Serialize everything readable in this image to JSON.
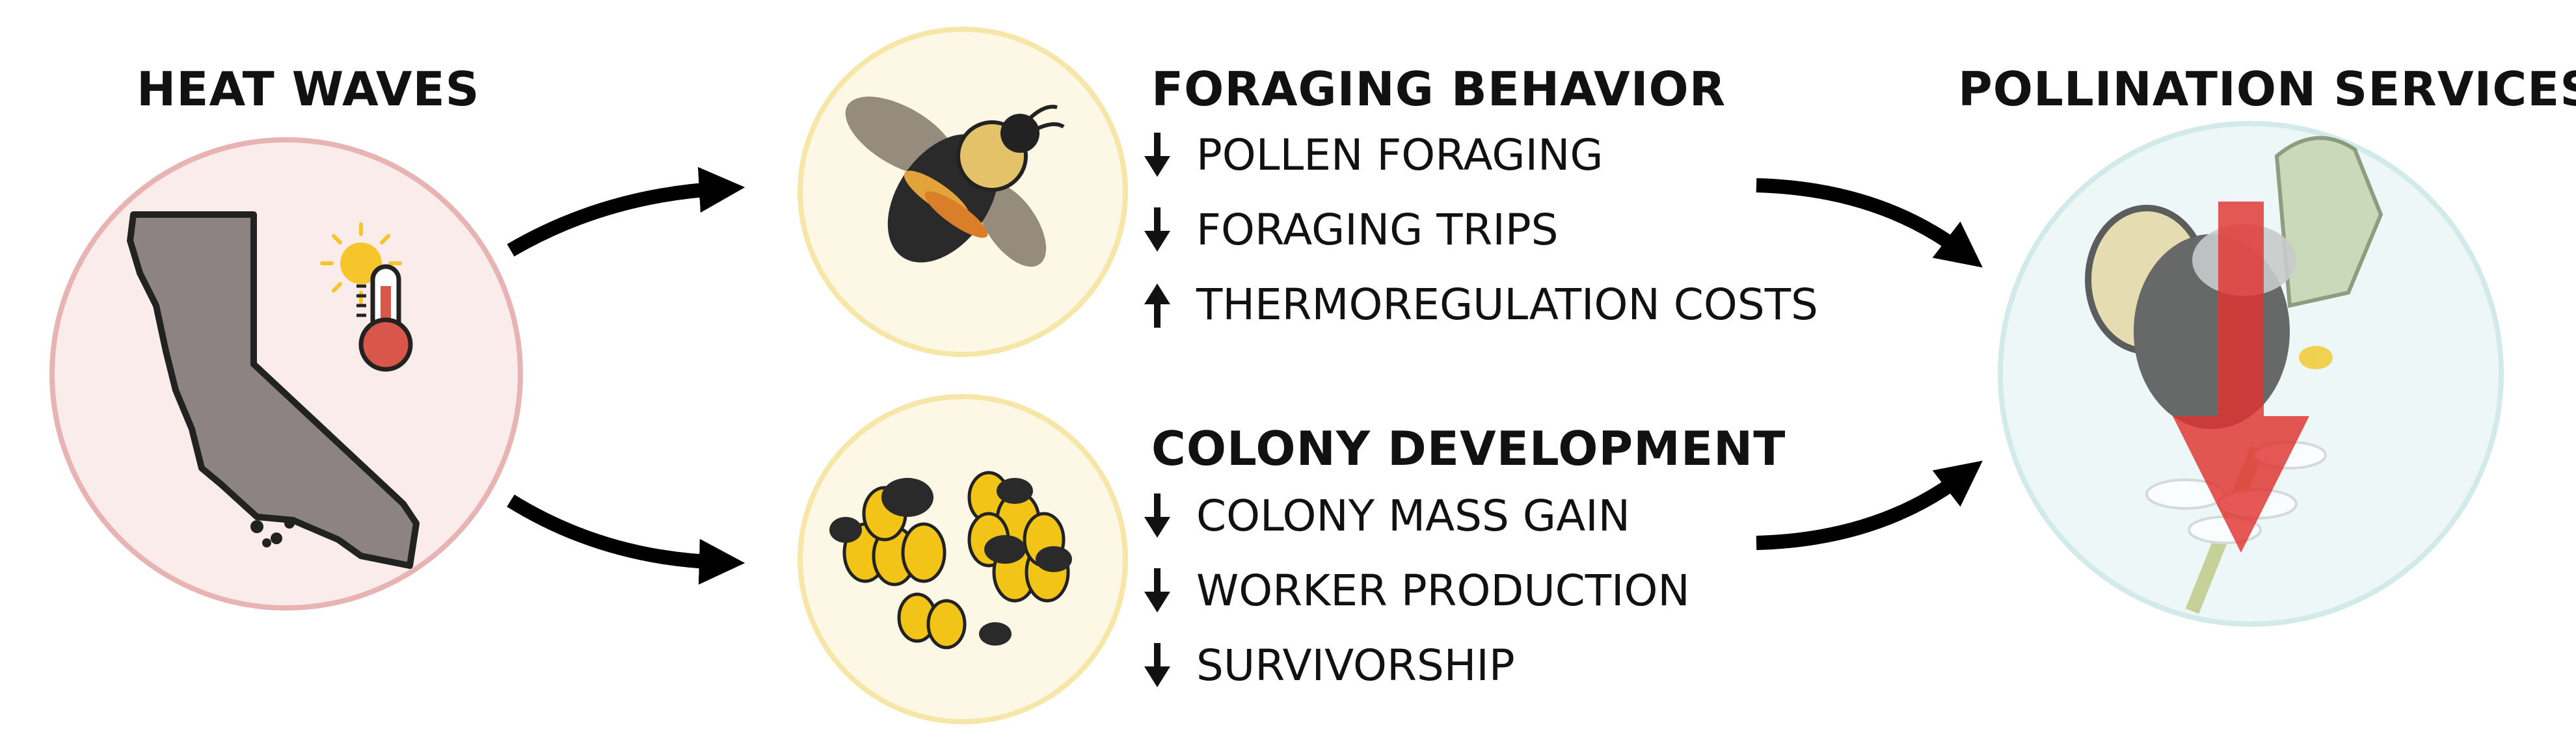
{
  "titles": {
    "heat_waves": "HEAT WAVES",
    "foraging": "FORAGING BEHAVIOR",
    "colony": "COLONY DEVELOPMENT",
    "pollination": "POLLINATION SERVICES"
  },
  "foraging_items": [
    {
      "direction": "down",
      "label": "POLLEN FORAGING"
    },
    {
      "direction": "down",
      "label": "FORAGING TRIPS"
    },
    {
      "direction": "up",
      "label": "THERMOREGULATION COSTS"
    }
  ],
  "colony_items": [
    {
      "direction": "down",
      "label": "COLONY MASS GAIN"
    },
    {
      "direction": "down",
      "label": "WORKER PRODUCTION"
    },
    {
      "direction": "down",
      "label": "SURVIVORSHIP"
    }
  ],
  "icons": {
    "heat": "california-map-with-sun-thermometer",
    "foraging": "bumble-bee-icon",
    "colony": "bee-colony-brood-icon",
    "pollination": "bee-on-flower-with-down-arrow-icon"
  },
  "colors": {
    "heat_circle_fill": "#fbecec",
    "heat_circle_stroke": "#e8b3b3",
    "bee_circle_fill": "#fdf8e6",
    "bee_circle_stroke": "#f6e6a8",
    "pollination_circle_fill": "#eef7f7",
    "pollination_circle_stroke": "#d2eaea",
    "state_fill": "#8e8383",
    "thermometer_red": "#d9574a",
    "sun_yellow": "#f5c52b",
    "brood_yellow": "#f2c418",
    "decline_arrow": "#e0332f"
  }
}
